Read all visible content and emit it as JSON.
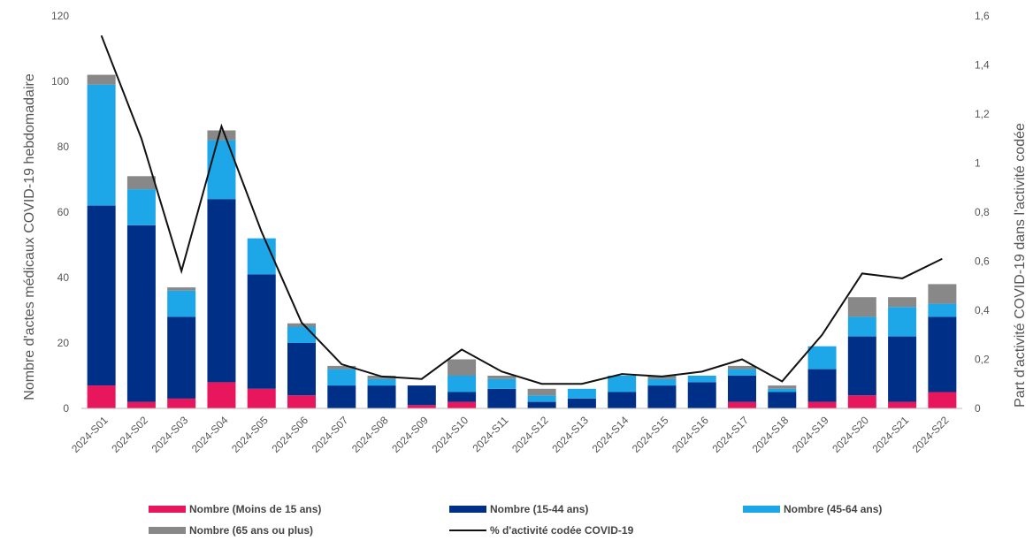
{
  "chart_data": {
    "type": "bar",
    "stacked": true,
    "categories": [
      "2024-S01",
      "2024-S02",
      "2024-S03",
      "2024-S04",
      "2024-S05",
      "2024-S06",
      "2024-S07",
      "2024-S08",
      "2024-S09",
      "2024-S10",
      "2024-S11",
      "2024-S12",
      "2024-S13",
      "2024-S14",
      "2024-S15",
      "2024-S16",
      "2024-S17",
      "2024-S18",
      "2024-S19",
      "2024-S20",
      "2024-S21",
      "2024-S22"
    ],
    "series": [
      {
        "name": "Nombre (Moins de 15 ans)",
        "color": "#e8175d",
        "values": [
          7,
          2,
          3,
          8,
          6,
          4,
          0,
          0,
          1,
          2,
          0,
          0,
          0,
          0,
          0,
          0,
          2,
          0,
          2,
          4,
          2,
          5
        ]
      },
      {
        "name": "Nombre (15-44 ans)",
        "color": "#002f87",
        "values": [
          55,
          54,
          25,
          56,
          35,
          16,
          7,
          7,
          6,
          3,
          6,
          2,
          3,
          5,
          7,
          8,
          8,
          5,
          10,
          18,
          20,
          23
        ]
      },
      {
        "name": "Nombre (45-64 ans)",
        "color": "#1ea7e8",
        "values": [
          37,
          11,
          8,
          18,
          11,
          5,
          5,
          2,
          0,
          5,
          3,
          2,
          3,
          5,
          2,
          2,
          2,
          1,
          7,
          6,
          9,
          4
        ]
      },
      {
        "name": "Nombre (65 ans ou plus)",
        "color": "#888888",
        "values": [
          3,
          4,
          1,
          3,
          0,
          1,
          1,
          1,
          0,
          5,
          1,
          2,
          0,
          0,
          1,
          0,
          1,
          1,
          0,
          6,
          3,
          6
        ]
      }
    ],
    "line_series": {
      "name": "% d'activité codée COVID-19",
      "color": "#111111",
      "axis": "right",
      "values": [
        1.52,
        1.1,
        0.56,
        1.15,
        0.72,
        0.35,
        0.18,
        0.13,
        0.12,
        0.24,
        0.15,
        0.1,
        0.1,
        0.14,
        0.13,
        0.15,
        0.2,
        0.11,
        0.3,
        0.55,
        0.53,
        0.61
      ]
    },
    "y_left": {
      "label": "Nombre d'actes médicaux COVID-19 hebdomadaire",
      "min": 0,
      "max": 120,
      "ticks": [
        "0",
        "20",
        "40",
        "60",
        "80",
        "100",
        "120"
      ]
    },
    "y_right": {
      "label": "Part d'activité COVID-19 dans l'activité codée",
      "min": 0,
      "max": 1.6,
      "ticks": [
        "0",
        "0,2",
        "0,4",
        "0,6",
        "0,8",
        "1",
        "1,2",
        "1,4",
        "1,6"
      ]
    },
    "grid": false,
    "legend": "bottom"
  }
}
